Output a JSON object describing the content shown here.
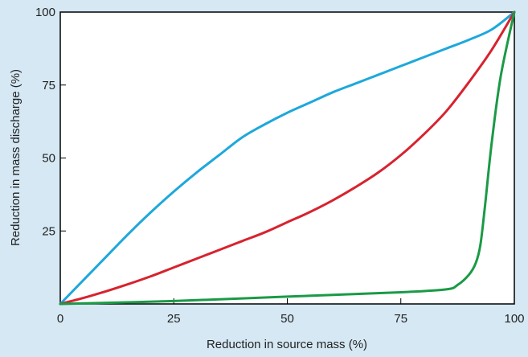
{
  "chart_data": {
    "type": "line",
    "xlabel": "Reduction in source mass (%)",
    "ylabel": "Reduction in mass discharge (%)",
    "xlim": [
      0,
      100
    ],
    "ylim": [
      0,
      100
    ],
    "x_ticks": [
      "0",
      "25",
      "50",
      "75",
      "100"
    ],
    "y_ticks": [
      "25",
      "50",
      "75",
      "100"
    ],
    "grid": false,
    "legend": "none",
    "series": [
      {
        "color": "#1ea8dc",
        "x": [
          0,
          5,
          10,
          15,
          20,
          25,
          30,
          35,
          40,
          45,
          50,
          55,
          60,
          65,
          70,
          75,
          80,
          85,
          90,
          95,
          100
        ],
        "y": [
          0,
          8,
          16,
          24,
          31.5,
          38.5,
          45,
          51,
          57,
          61.5,
          65.5,
          69,
          72.5,
          75.5,
          78.5,
          81.5,
          84.5,
          87.5,
          90.5,
          94,
          100
        ]
      },
      {
        "color": "#d7232f",
        "x": [
          0,
          5,
          10,
          15,
          20,
          25,
          30,
          35,
          40,
          45,
          50,
          55,
          60,
          65,
          70,
          75,
          80,
          85,
          90,
          95,
          100
        ],
        "y": [
          0,
          2,
          4.3,
          6.8,
          9.5,
          12.5,
          15.5,
          18.5,
          21.5,
          24.5,
          28,
          31.5,
          35.5,
          40,
          45,
          51,
          58,
          66,
          76,
          87,
          100
        ]
      },
      {
        "color": "#1a9a46",
        "x": [
          0,
          25,
          50,
          75,
          85,
          87.5,
          90,
          91.5,
          92.5,
          93.5,
          95,
          97,
          100
        ],
        "y": [
          0,
          1,
          2.5,
          4,
          5,
          6.5,
          10,
          14,
          20,
          33,
          55,
          78,
          100
        ]
      }
    ]
  }
}
